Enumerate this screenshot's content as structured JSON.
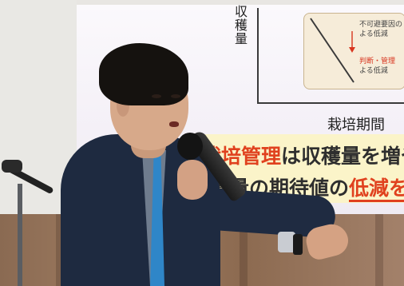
{
  "slide": {
    "y_axis_label": "収穫量",
    "x_axis_label": "栽培期間",
    "inset_notes": [
      {
        "text": "不可避要因の",
        "tone": "default"
      },
      {
        "text": "よる低減",
        "tone": "default"
      },
      {
        "text": "判断・管理",
        "tone": "red"
      },
      {
        "text": "よる低減",
        "tone": "default"
      }
    ],
    "banner_line1": {
      "emphasis": "栽培管理",
      "rest": "は収穫量を増やす"
    },
    "banner_line2": {
      "start": "穫量の期待値の",
      "underlined": "低減を"
    }
  },
  "colors": {
    "accent_red": "#e0411e",
    "tie_blue": "#2f86c8",
    "banner_yellow": "#fbf4c9"
  }
}
